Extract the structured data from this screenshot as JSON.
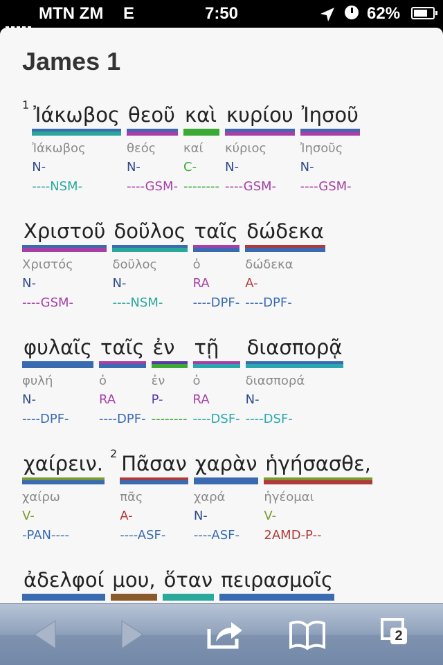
{
  "status_bar": {
    "carrier": "MTN ZM",
    "network": "E",
    "time": "7:50",
    "battery": "62%",
    "icons": [
      "signal-icon",
      "location-icon",
      "alarm-icon",
      "battery-icon"
    ]
  },
  "chapter_title": "James 1",
  "colors": {
    "teal": "#2aa89a",
    "purple": "#a63fa6",
    "green": "#3aaa35",
    "blue": "#3a6ab0",
    "olive": "#7a9a30",
    "red": "#b03a3a",
    "brown": "#8b5a2b",
    "gray_text": "#8a8a8a",
    "navy": "#2d4a8a"
  },
  "lines": [
    {
      "verse": "1",
      "words": [
        {
          "greek": "Ἰάκωβος",
          "lemma": "Ἰάκωβος",
          "pos": "N-",
          "parse": "----NSM-",
          "bar_top": "#3a6ab0",
          "bar_bottom": "#2aa89a",
          "pos_color": "#2d4a8a",
          "parse_color": "#2aa89a"
        },
        {
          "greek": "θεοῦ",
          "lemma": "θεός",
          "pos": "N-",
          "parse": "----GSM-",
          "bar_top": "#3a6ab0",
          "bar_bottom": "#a63fa6",
          "pos_color": "#2d4a8a",
          "parse_color": "#a63fa6"
        },
        {
          "greek": "καὶ",
          "lemma": "καί",
          "pos": "C-",
          "parse": "--------",
          "bar_top": "#3aaa35",
          "bar_bottom": "#3aaa35",
          "pos_color": "#3aaa35",
          "parse_color": "#3aaa35"
        },
        {
          "greek": "κυρίου",
          "lemma": "κύριος",
          "pos": "N-",
          "parse": "----GSM-",
          "bar_top": "#3a6ab0",
          "bar_bottom": "#a63fa6",
          "pos_color": "#2d4a8a",
          "parse_color": "#a63fa6"
        },
        {
          "greek": "Ἰησοῦ",
          "lemma": "Ἰησοῦς",
          "pos": "N-",
          "parse": "----GSM-",
          "bar_top": "#3a6ab0",
          "bar_bottom": "#a63fa6",
          "pos_color": "#2d4a8a",
          "parse_color": "#a63fa6"
        }
      ]
    },
    {
      "verse": "",
      "words": [
        {
          "greek": "Χριστοῦ",
          "lemma": "Χριστός",
          "pos": "N-",
          "parse": "----GSM-",
          "bar_top": "#3a6ab0",
          "bar_bottom": "#a63fa6",
          "pos_color": "#2d4a8a",
          "parse_color": "#a63fa6"
        },
        {
          "greek": "δοῦλος",
          "lemma": "δοῦλος",
          "pos": "N-",
          "parse": "----NSM-",
          "bar_top": "#3a6ab0",
          "bar_bottom": "#2aa89a",
          "pos_color": "#2d4a8a",
          "parse_color": "#2aa89a"
        },
        {
          "greek": "ταῖς",
          "lemma": "ὁ",
          "pos": "RA",
          "parse": "----DPF-",
          "bar_top": "#a63fa6",
          "bar_bottom": "#3a6ab0",
          "pos_color": "#a63fa6",
          "parse_color": "#3a6ab0"
        },
        {
          "greek": "δώδεκα",
          "lemma": "δώδεκα",
          "pos": "A-",
          "parse": "----DPF-",
          "bar_top": "#b03a3a",
          "bar_bottom": "#3a6ab0",
          "pos_color": "#b03a3a",
          "parse_color": "#3a6ab0"
        }
      ]
    },
    {
      "verse": "",
      "words": [
        {
          "greek": "φυλαῖς",
          "lemma": "φυλή",
          "pos": "N-",
          "parse": "----DPF-",
          "bar_top": "#3a6ab0",
          "bar_bottom": "#3a6ab0",
          "pos_color": "#2d4a8a",
          "parse_color": "#3a6ab0"
        },
        {
          "greek": "ταῖς",
          "lemma": "ὁ",
          "pos": "RA",
          "parse": "----DPF-",
          "bar_top": "#a63fa6",
          "bar_bottom": "#3a6ab0",
          "pos_color": "#a63fa6",
          "parse_color": "#3a6ab0"
        },
        {
          "greek": "ἐν",
          "lemma": "ἐν",
          "pos": "P-",
          "parse": "--------",
          "bar_top": "#5a3aa6",
          "bar_bottom": "#3aaa35",
          "pos_color": "#5a3aa6",
          "parse_color": "#3aaa35"
        },
        {
          "greek": "τῇ",
          "lemma": "ὁ",
          "pos": "RA",
          "parse": "----DSF-",
          "bar_top": "#a63fa6",
          "bar_bottom": "#2aa8b0",
          "pos_color": "#a63fa6",
          "parse_color": "#2aa8b0"
        },
        {
          "greek": "διασπορᾷ",
          "lemma": "διασπορά",
          "pos": "N-",
          "parse": "----DSF-",
          "bar_top": "#3a6ab0",
          "bar_bottom": "#2aa8b0",
          "pos_color": "#2d4a8a",
          "parse_color": "#2aa8b0"
        }
      ]
    },
    {
      "verse": "",
      "words": [
        {
          "greek": "χαίρειν.",
          "lemma": "χαίρω",
          "pos": "V-",
          "parse": "-PAN----",
          "bar_top": "#7a9a30",
          "bar_bottom": "#3a6ab0",
          "pos_color": "#7a9a30",
          "parse_color": "#3a6ab0"
        },
        {
          "greek": "Πᾶσαν",
          "lemma": "πᾶς",
          "pos": "A-",
          "parse": "----ASF-",
          "bar_top": "#b03a3a",
          "bar_bottom": "#3a6ab0",
          "pos_color": "#b03a3a",
          "parse_color": "#3a6ab0",
          "verse": "2"
        },
        {
          "greek": "χαρὰν",
          "lemma": "χαρά",
          "pos": "N-",
          "parse": "----ASF-",
          "bar_top": "#3a6ab0",
          "bar_bottom": "#3a6ab0",
          "pos_color": "#2d4a8a",
          "parse_color": "#3a6ab0"
        },
        {
          "greek": "ἡγήσασθε,",
          "lemma": "ἡγέομαι",
          "pos": "V-",
          "parse": "2AMD-P--",
          "bar_top": "#7a9a30",
          "bar_bottom": "#b03a3a",
          "pos_color": "#7a9a30",
          "parse_color": "#b03a3a"
        }
      ]
    },
    {
      "verse": "",
      "words": [
        {
          "greek": "ἀδελφοί",
          "lemma": "",
          "pos": "",
          "parse": "",
          "bar_top": "#3a6ab0",
          "bar_bottom": "#3a6ab0",
          "pos_color": "#2d4a8a",
          "parse_color": "#3a6ab0"
        },
        {
          "greek": "μου,",
          "lemma": "",
          "pos": "",
          "parse": "",
          "bar_top": "#8b5a2b",
          "bar_bottom": "#8b5a2b",
          "pos_color": "#8b5a2b",
          "parse_color": "#8b5a2b"
        },
        {
          "greek": "ὅταν",
          "lemma": "",
          "pos": "",
          "parse": "",
          "bar_top": "#2aa89a",
          "bar_bottom": "#2aa89a",
          "pos_color": "#2aa89a",
          "parse_color": "#2aa89a"
        },
        {
          "greek": "πειρασμοῖς",
          "lemma": "",
          "pos": "",
          "parse": "",
          "bar_top": "#3a6ab0",
          "bar_bottom": "#3a6ab0",
          "pos_color": "#2d4a8a",
          "parse_color": "#3a6ab0"
        }
      ]
    }
  ],
  "toolbar": {
    "back": "back-icon",
    "forward": "forward-icon",
    "share": "share-icon",
    "bookmarks": "bookmarks-icon",
    "tabs": "tabs-icon",
    "tab_count": "2"
  }
}
